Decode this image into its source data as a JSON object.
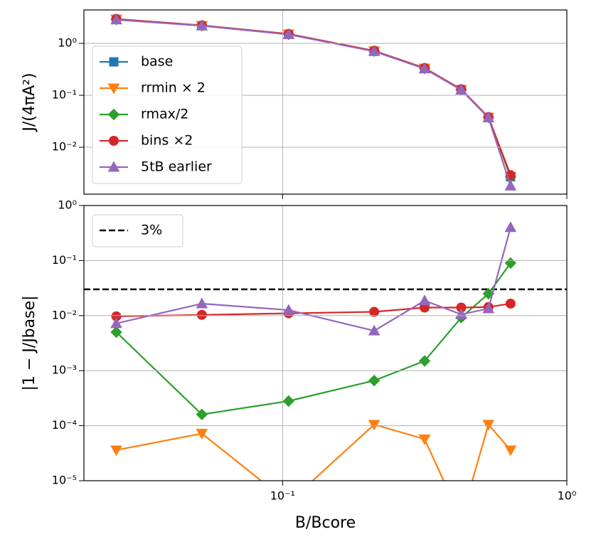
{
  "chart_data": [
    {
      "type": "line",
      "x_scale": "log",
      "y_scale": "log",
      "grid": true,
      "ylabel": "J/(4πA²)",
      "x": [
        0.026,
        0.052,
        0.105,
        0.21,
        0.316,
        0.425,
        0.53,
        0.634
      ],
      "xlim": [
        0.02,
        1
      ],
      "xticks": [
        0.1,
        1
      ],
      "ylim": [
        0.00125,
        4.4
      ],
      "yticks": [
        {
          "value": 0.01,
          "label": "10⁻²"
        },
        {
          "value": 0.1,
          "label": "10⁻¹"
        },
        {
          "value": 1,
          "label": "10⁰"
        }
      ],
      "legend": "lower left",
      "series": [
        {
          "name": "base",
          "color": "#1f77b4",
          "marker": "square",
          "values": [
            2.9,
            2.2,
            1.5,
            0.71,
            0.33,
            0.129,
            0.0376,
            0.0027
          ]
        },
        {
          "name": "rrmin × 2",
          "color": "#ff7f0e",
          "marker": "triangle-down",
          "values": [
            2.9,
            2.2,
            1.5,
            0.71,
            0.33,
            0.129,
            0.0376,
            0.0027
          ]
        },
        {
          "name": "rmax/2",
          "color": "#2ca02c",
          "marker": "diamond",
          "values": [
            2.9,
            2.2,
            1.5,
            0.71,
            0.33,
            0.129,
            0.0376,
            0.0027
          ]
        },
        {
          "name": "bins ×2",
          "color": "#d62728",
          "marker": "circle",
          "values": [
            2.95,
            2.22,
            1.52,
            0.72,
            0.335,
            0.131,
            0.038,
            0.0029
          ]
        },
        {
          "name": "5tB earlier",
          "color": "#9467bd",
          "marker": "triangle-up",
          "values": [
            2.85,
            2.18,
            1.48,
            0.7,
            0.325,
            0.127,
            0.037,
            0.0018
          ]
        }
      ]
    },
    {
      "type": "line",
      "x_scale": "log",
      "y_scale": "log",
      "grid": true,
      "xlabel": "B/Bcore",
      "ylabel": "|1 − J/Jbase|",
      "x": [
        0.026,
        0.052,
        0.105,
        0.21,
        0.316,
        0.425,
        0.53,
        0.634
      ],
      "xlim": [
        0.02,
        1
      ],
      "xticks": [
        {
          "value": 0.1,
          "label": "10⁻¹"
        },
        {
          "value": 1,
          "label": "10⁰"
        }
      ],
      "ylim": [
        1e-05,
        1
      ],
      "yticks": [
        {
          "value": 1e-05,
          "label": "10⁻⁵"
        },
        {
          "value": 0.0001,
          "label": "10⁻⁴"
        },
        {
          "value": 0.001,
          "label": "10⁻³"
        },
        {
          "value": 0.01,
          "label": "10⁻²"
        },
        {
          "value": 0.1,
          "label": "10⁻¹"
        },
        {
          "value": 1,
          "label": "10⁰"
        }
      ],
      "legend": "upper left",
      "reference_lines": [
        {
          "name": "3%",
          "value": 0.03,
          "color": "#000000"
        }
      ],
      "series": [
        {
          "name": "rrmin × 2",
          "color": "#ff7f0e",
          "marker": "triangle-down",
          "values": [
            3.6e-05,
            7.2e-05,
            4e-06,
            0.000105,
            5.7e-05,
            2e-06,
            0.000105,
            3.6e-05
          ]
        },
        {
          "name": "rmax/2",
          "color": "#2ca02c",
          "marker": "diamond",
          "values": [
            0.005,
            0.00016,
            0.00028,
            0.00066,
            0.0015,
            0.0092,
            0.025,
            0.09
          ]
        },
        {
          "name": "bins ×2",
          "color": "#d62728",
          "marker": "circle",
          "values": [
            0.0097,
            0.0103,
            0.011,
            0.0117,
            0.014,
            0.014,
            0.0143,
            0.0165
          ]
        },
        {
          "name": "5tB earlier",
          "color": "#9467bd",
          "marker": "triangle-up",
          "values": [
            0.0072,
            0.0165,
            0.0126,
            0.0053,
            0.0187,
            0.0105,
            0.0134,
            0.4
          ]
        }
      ]
    }
  ]
}
